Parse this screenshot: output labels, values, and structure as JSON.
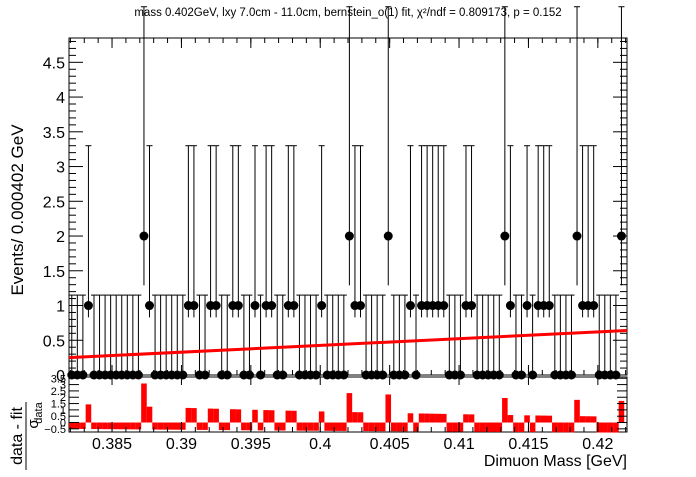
{
  "chart_data": [
    {
      "panel": "main",
      "type": "scatter",
      "title": "mass 0.402GeV, lxy 7.0cm - 11.0cm, bernstein_o(1) fit, χ²/ndf = 0.809173, p = 0.152",
      "xlabel": "",
      "ylabel": "Events/ 0.000402 GeV",
      "xlim": [
        0.3819,
        0.4221
      ],
      "ylim": [
        0,
        4.85
      ],
      "x_ticks": [
        "0.385",
        "0.39",
        "0.395",
        "0.4",
        "0.405",
        "0.41",
        "0.415",
        "0.42"
      ],
      "y_ticks": [
        "0",
        "0.5",
        "1",
        "1.5",
        "2",
        "2.5",
        "3",
        "3.5",
        "4",
        "4.5"
      ],
      "grid": false,
      "series": [
        {
          "kind": "data-points-with-poisson-errors",
          "bin_width": 0.000402,
          "x": [
            0.3821,
            0.3825,
            0.3829,
            0.3833,
            0.3837,
            0.3841,
            0.3845,
            0.3849,
            0.3853,
            0.3857,
            0.3861,
            0.3865,
            0.3869,
            0.3873,
            0.3877,
            0.3881,
            0.3885,
            0.3889,
            0.3893,
            0.3897,
            0.3901,
            0.3905,
            0.3909,
            0.3913,
            0.3917,
            0.3921,
            0.3925,
            0.3929,
            0.3933,
            0.3937,
            0.3941,
            0.3945,
            0.3949,
            0.3953,
            0.3957,
            0.3961,
            0.3965,
            0.3969,
            0.3973,
            0.3977,
            0.3981,
            0.3985,
            0.3989,
            0.3993,
            0.3997,
            0.4001,
            0.4005,
            0.4009,
            0.4013,
            0.4017,
            0.4021,
            0.4025,
            0.4029,
            0.4033,
            0.4037,
            0.4041,
            0.4045,
            0.4049,
            0.4053,
            0.4057,
            0.4061,
            0.4065,
            0.4069,
            0.4073,
            0.4077,
            0.4081,
            0.4085,
            0.4089,
            0.4093,
            0.4097,
            0.4101,
            0.4105,
            0.4109,
            0.4113,
            0.4117,
            0.4121,
            0.4125,
            0.4129,
            0.4133,
            0.4137,
            0.4141,
            0.4145,
            0.4149,
            0.4153,
            0.4157,
            0.4161,
            0.4165,
            0.4169,
            0.4173,
            0.4177,
            0.4181,
            0.4185,
            0.4189,
            0.4193,
            0.4197,
            0.4201,
            0.4205,
            0.4209,
            0.4213,
            0.4217
          ],
          "y": [
            0,
            0,
            0,
            1,
            0,
            0,
            0,
            0,
            0,
            0,
            0,
            0,
            0,
            2,
            1,
            0,
            0,
            0,
            0,
            0,
            0,
            1,
            1,
            0,
            0,
            1,
            1,
            0,
            0,
            1,
            1,
            0,
            0,
            1,
            0,
            1,
            1,
            0,
            0,
            1,
            1,
            0,
            0,
            0,
            0,
            1,
            0,
            0,
            0,
            0,
            2,
            1,
            1,
            0,
            0,
            0,
            0,
            2,
            0,
            0,
            0,
            1,
            0,
            1,
            1,
            1,
            1,
            1,
            0,
            0,
            0,
            1,
            1,
            0,
            0,
            0,
            0,
            0,
            2,
            1,
            0,
            0,
            1,
            0,
            1,
            1,
            1,
            0,
            0,
            0,
            0,
            2,
            1,
            1,
            1,
            0,
            0,
            0,
            0,
            2
          ]
        },
        {
          "kind": "fit-line",
          "name": "",
          "x": [
            0.3819,
            0.4221
          ],
          "y": [
            0.25,
            0.64
          ]
        }
      ]
    },
    {
      "panel": "pull",
      "type": "bar",
      "ylabel_top": "data - fit",
      "ylabel_bottom": "σ",
      "ylabel_sub": "data",
      "xlabel": "Dimuon Mass [GeV]",
      "xlim": [
        0.3819,
        0.4221
      ],
      "ylim": [
        -0.75,
        3.6
      ],
      "y_ticks": [
        "−0.5",
        "0",
        "0.5",
        "1",
        "1.5",
        "2",
        "2.5",
        "3",
        "3.5"
      ],
      "x_ticks": [
        "0.385",
        "0.39",
        "0.395",
        "0.4",
        "0.405",
        "0.41",
        "0.415",
        "0.42"
      ],
      "values_rule": "pull = (count - fit)/sqrt(fit) for each bin of the main panel"
    }
  ],
  "colors": {
    "fit": "#ff0000",
    "data": "#000000",
    "pull": "#ff0000",
    "axis": "#000000"
  }
}
